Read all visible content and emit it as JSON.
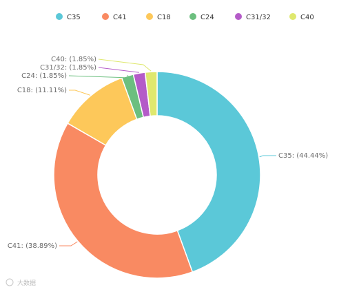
{
  "chart_data": {
    "type": "pie",
    "donut": true,
    "title": "",
    "legend_position": "top",
    "series": [
      {
        "name": "C35",
        "value": 44.44,
        "label": "C35: (44.44%)",
        "color": "#5bc8d8"
      },
      {
        "name": "C41",
        "value": 38.89,
        "label": "C41: (38.89%)",
        "color": "#f98a62"
      },
      {
        "name": "C18",
        "value": 11.11,
        "label": "C18: (11.11%)",
        "color": "#fdc85a"
      },
      {
        "name": "C24",
        "value": 1.85,
        "label": "C24: (1.85%)",
        "color": "#6cbf7f"
      },
      {
        "name": "C31/32",
        "value": 1.85,
        "label": "C31/32: (1.85%)",
        "color": "#b45bc8"
      },
      {
        "name": "C40",
        "value": 1.85,
        "label": "C40: (1.85%)",
        "color": "#dfe86e"
      }
    ]
  },
  "watermark": {
    "text": "大数据"
  }
}
